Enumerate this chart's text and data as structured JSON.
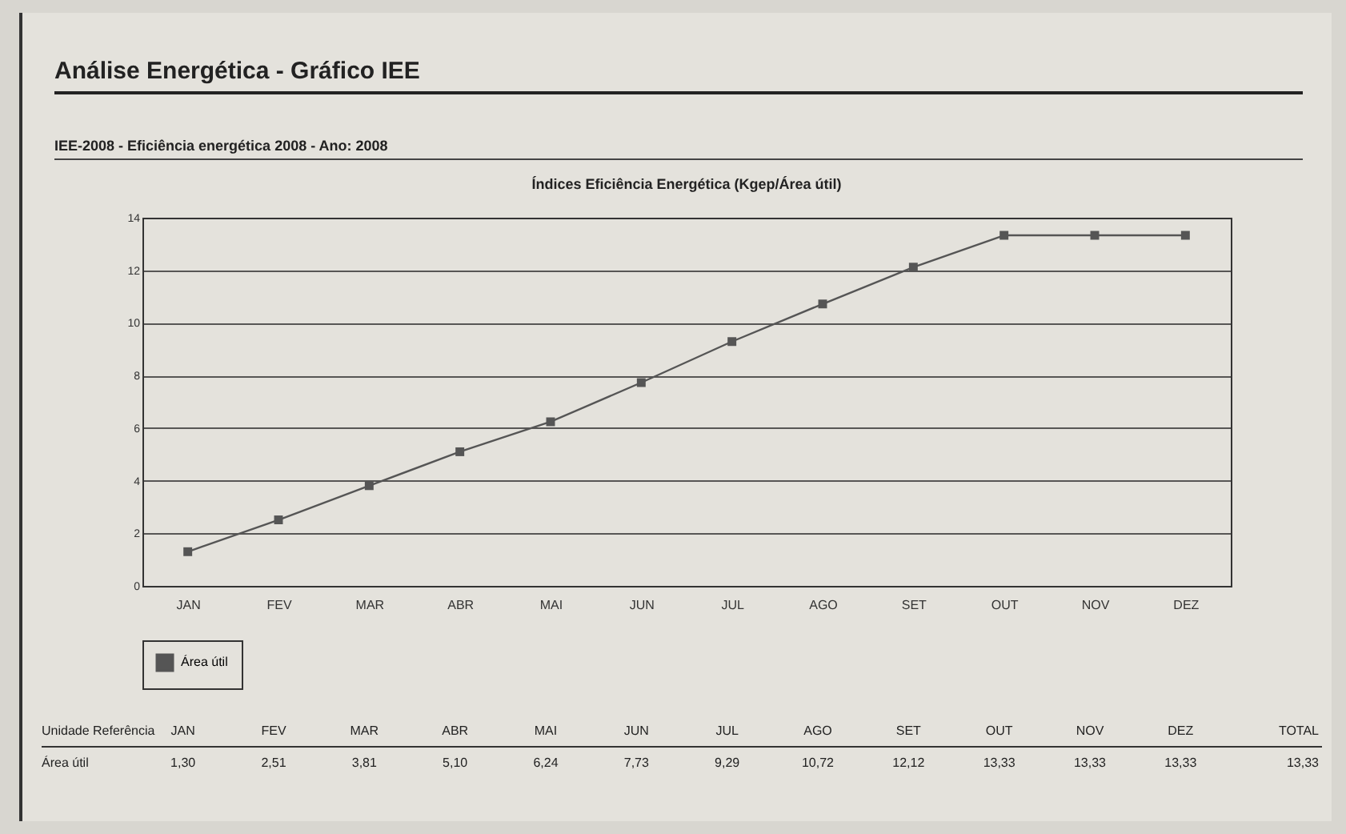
{
  "chart_data": {
    "type": "line",
    "title": "Índices Eficiência Energética (Kgep/Área útil)",
    "subtitle": "IEE-2008 - Eficiência energética 2008 - Ano: 2008",
    "annotations": [
      "Análise Energética - Gráfico IEE",
      "Unidade Referência",
      "TOTAL",
      "13,33"
    ],
    "categories": [
      "JAN",
      "FEV",
      "MAR",
      "ABR",
      "MAI",
      "JUN",
      "JUL",
      "AGO",
      "SET",
      "OUT",
      "NOV",
      "DEZ"
    ],
    "series": [
      {
        "name": "Área útil",
        "color": "#555555",
        "values": [
          1.3,
          2.51,
          3.81,
          5.1,
          6.24,
          7.73,
          9.29,
          10.72,
          12.12,
          13.33,
          13.33,
          13.33
        ],
        "value_labels": [
          "1,30",
          "2,51",
          "3,81",
          "5,10",
          "6,24",
          "7,73",
          "9,29",
          "10,72",
          "12,12",
          "13,33",
          "13,33",
          "13,33"
        ]
      }
    ],
    "ylim": [
      0,
      14
    ],
    "yticks": [
      0,
      2,
      4,
      6,
      8,
      10,
      12,
      14
    ],
    "grid": "y",
    "legend": "bottom",
    "marker": "square",
    "line_style": "solid"
  }
}
